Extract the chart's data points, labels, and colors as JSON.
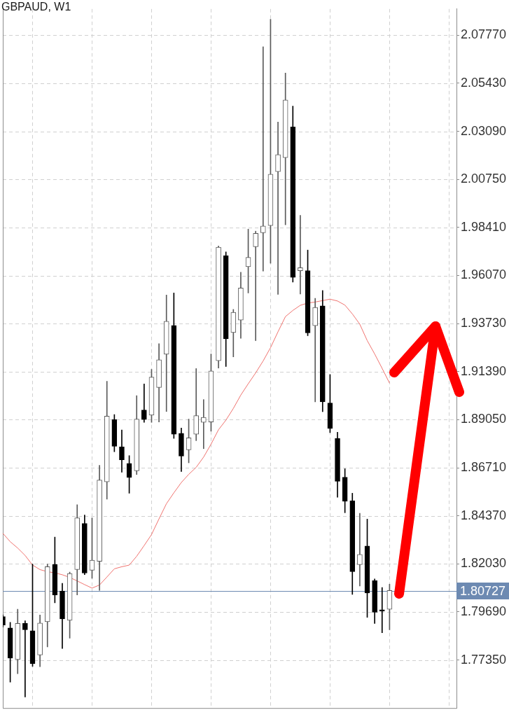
{
  "chart_data": {
    "type": "candlestick",
    "title": "GBPAUD, W1",
    "categories": [
      null,
      null,
      null,
      null,
      null,
      null,
      null,
      null,
      null,
      null,
      null,
      null,
      null,
      null,
      null,
      null,
      null,
      null,
      null,
      null,
      null,
      null,
      null,
      null,
      null,
      null,
      null,
      null,
      null,
      null,
      null,
      null,
      null,
      null,
      null,
      null,
      null,
      null,
      null,
      null,
      null,
      null,
      null,
      null,
      null,
      null,
      null,
      null,
      null,
      null,
      null,
      null,
      null,
      null,
      null,
      null,
      null,
      null,
      null,
      null,
      null,
      null
    ],
    "ohlc": [
      [
        1.7946,
        1.7955,
        1.7895,
        1.7905
      ],
      [
        1.7891,
        1.7918,
        1.7627,
        1.7744
      ],
      [
        1.7737,
        1.7982,
        1.7668,
        1.7913
      ],
      [
        1.7913,
        1.7926,
        1.7555,
        1.7882
      ],
      [
        1.7877,
        1.8202,
        1.7704,
        1.7717
      ],
      [
        1.7759,
        1.7954,
        1.7702,
        1.7915
      ],
      [
        1.7921,
        1.8202,
        1.7799,
        1.8189
      ],
      [
        1.82,
        1.8333,
        1.8013,
        1.8052
      ],
      [
        1.8071,
        1.8108,
        1.7791,
        1.7935
      ],
      [
        1.7928,
        1.8163,
        1.7841,
        1.8156
      ],
      [
        1.8175,
        1.8491,
        1.8052,
        1.8427
      ],
      [
        1.84,
        1.8441,
        1.8151,
        1.8158
      ],
      [
        1.8172,
        1.8427,
        1.8133,
        1.8221
      ],
      [
        1.8215,
        1.8683,
        1.8074,
        1.8611
      ],
      [
        1.8602,
        1.9092,
        1.8518,
        1.8922
      ],
      [
        1.8905,
        1.893,
        1.8749,
        1.8775
      ],
      [
        1.8773,
        1.8855,
        1.8649,
        1.871
      ],
      [
        1.8692,
        1.873,
        1.8547,
        1.8624
      ],
      [
        1.8656,
        1.9022,
        1.8638,
        1.8908
      ],
      [
        1.8952,
        1.9079,
        1.8892,
        1.8906
      ],
      [
        1.8927,
        1.915,
        1.8892,
        1.9112
      ],
      [
        1.9062,
        1.9275,
        1.8894,
        1.9197
      ],
      [
        1.9224,
        1.9512,
        1.8945,
        1.9384
      ],
      [
        1.9364,
        1.9522,
        1.8814,
        1.8834
      ],
      [
        1.8839,
        1.8864,
        1.8653,
        1.8728
      ],
      [
        1.8758,
        1.8908,
        1.8695,
        1.8817
      ],
      [
        1.8834,
        1.9154,
        1.8803,
        1.8925
      ],
      [
        1.8892,
        1.9003,
        1.8764,
        1.8916
      ],
      [
        1.8894,
        1.9225,
        1.8849,
        1.9142
      ],
      [
        1.9192,
        1.9751,
        1.9156,
        1.9745
      ],
      [
        1.9704,
        1.9722,
        1.9164,
        1.9299
      ],
      [
        1.9329,
        1.9442,
        1.9211,
        1.9428
      ],
      [
        1.939,
        1.9623,
        1.9301,
        1.9546
      ],
      [
        1.965,
        1.9833,
        1.9522,
        1.9695
      ],
      [
        1.9747,
        1.9823,
        1.929,
        1.9812
      ],
      [
        1.9815,
        2.0721,
        1.9629,
        1.9848
      ],
      [
        1.985,
        2.0855,
        1.9667,
        2.01
      ],
      [
        2.0113,
        2.0354,
        1.9515,
        2.0196
      ],
      [
        2.0181,
        2.0593,
        1.9854,
        2.0462
      ],
      [
        2.033,
        2.0432,
        1.9575,
        1.9598
      ],
      [
        1.963,
        1.99,
        1.9517,
        1.9645
      ],
      [
        1.9631,
        1.9731,
        1.9314,
        1.9328
      ],
      [
        1.9363,
        1.9496,
        1.8992,
        1.9452
      ],
      [
        1.9459,
        1.9534,
        1.8944,
        1.8992
      ],
      [
        1.8986,
        1.9125,
        1.8842,
        1.8862
      ],
      [
        1.8814,
        1.8844,
        1.8527,
        1.8605
      ],
      [
        1.8625,
        1.8666,
        1.8452,
        1.8508
      ],
      [
        1.851,
        1.8547,
        1.8054,
        1.8165
      ],
      [
        1.8199,
        1.8449,
        1.8095,
        1.8249
      ],
      [
        1.829,
        1.8421,
        1.7943,
        1.8061
      ],
      [
        1.8121,
        1.813,
        1.7913,
        1.7967
      ],
      [
        1.798,
        1.8088,
        1.7868,
        1.7973
      ],
      [
        1.7982,
        1.8104,
        1.7882,
        1.8073
      ],
      null,
      null,
      null,
      null,
      null,
      null,
      null,
      null,
      null
    ],
    "series": [
      {
        "type": "line",
        "color": "#f07470",
        "values": [
          1.8352,
          1.8311,
          1.828,
          1.8244,
          1.8197,
          1.8175,
          1.8165,
          1.8159,
          1.815,
          1.8137,
          1.812,
          1.8102,
          1.8085,
          1.81,
          1.8139,
          1.8179,
          1.8189,
          1.8197,
          1.824,
          1.8292,
          1.8346,
          1.8422,
          1.8496,
          1.8549,
          1.8599,
          1.8639,
          1.8673,
          1.8723,
          1.8786,
          1.8856,
          1.8903,
          1.896,
          1.9025,
          1.908,
          1.9133,
          1.9191,
          1.9256,
          1.9333,
          1.9407,
          1.9437,
          1.9462,
          1.9473,
          1.9478,
          1.9485,
          1.9492,
          1.9483,
          1.9463,
          1.942,
          1.937,
          1.929,
          1.9225,
          1.9155,
          1.9083,
          null,
          null,
          null,
          null,
          null,
          null,
          null,
          null,
          null
        ]
      }
    ],
    "ylim": [
      1.7501,
      2.0905
    ],
    "yticks": [
      {
        "value": 1.7735,
        "label": "1.77350"
      },
      {
        "value": 1.7969,
        "label": "1.79690"
      },
      {
        "value": 1.8203,
        "label": "1.82030"
      },
      {
        "value": 1.8437,
        "label": "1.84370"
      },
      {
        "value": 1.8671,
        "label": "1.86710"
      },
      {
        "value": 1.8905,
        "label": "1.89050"
      },
      {
        "value": 1.9139,
        "label": "1.91390"
      },
      {
        "value": 1.9373,
        "label": "1.93730"
      },
      {
        "value": 1.9607,
        "label": "1.96070"
      },
      {
        "value": 1.9841,
        "label": "1.98410"
      },
      {
        "value": 2.0075,
        "label": "2.00750"
      },
      {
        "value": 2.0309,
        "label": "2.03090"
      },
      {
        "value": 2.0543,
        "label": "2.05430"
      },
      {
        "value": 2.0777,
        "label": "2.07770"
      }
    ],
    "grid": true,
    "ref_lines": [
      {
        "axis": "y",
        "value": 1.80727,
        "label": "1.80727",
        "color": "#6d8ab2"
      }
    ]
  }
}
